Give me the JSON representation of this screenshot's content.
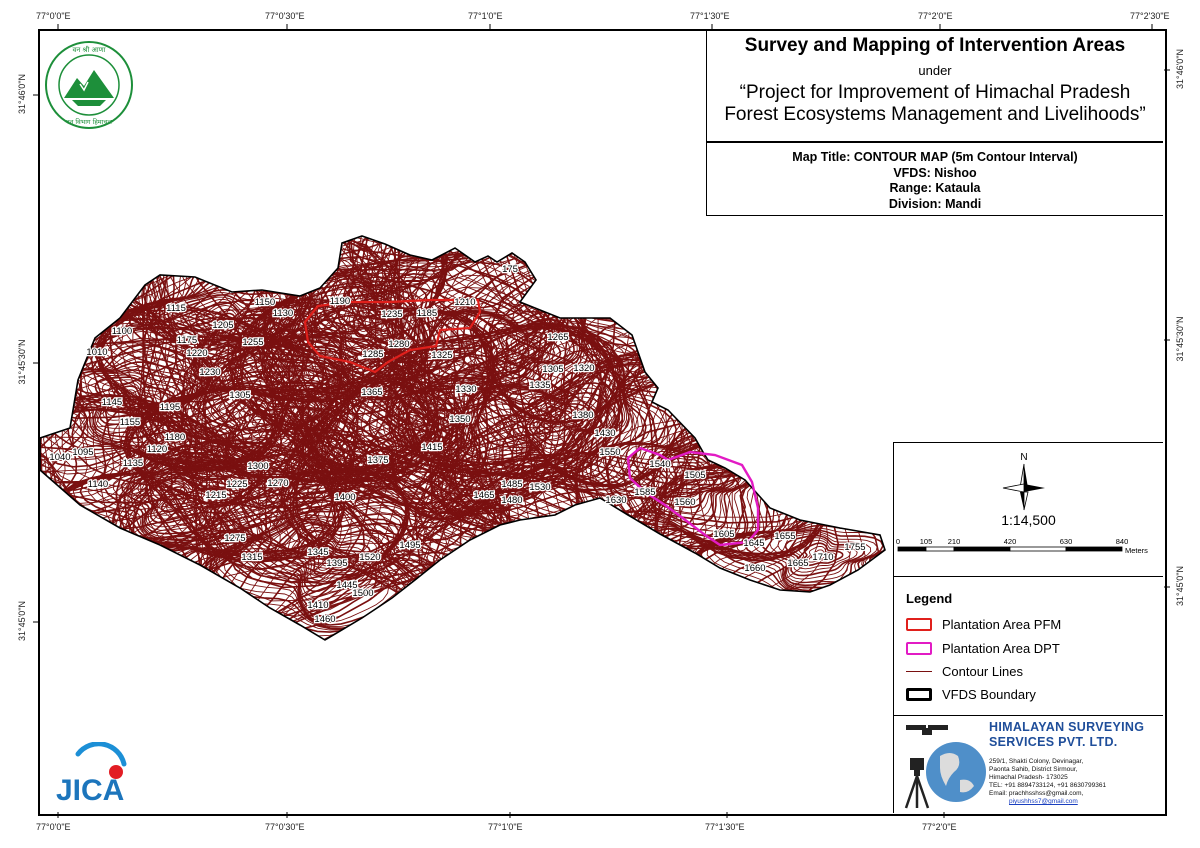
{
  "graticule": {
    "top": [
      "77°0'0\"E",
      "77°0'30\"E",
      "77°1'0\"E",
      "77°1'30\"E",
      "77°2'0\"E",
      "77°2'30\"E"
    ],
    "bottom": [
      "77°0'0\"E",
      "77°0'30\"E",
      "77°1'0\"E",
      "77°1'30\"E",
      "77°2'0\"E"
    ],
    "left": [
      "31°46'0\"N",
      "31°45'30\"N",
      "31°45'0\"N"
    ],
    "right": [
      "31°46'0\"N",
      "31°45'30\"N",
      "31°45'0\"N"
    ]
  },
  "title": {
    "main": "Survey and Mapping of Intervention Areas",
    "under": "under",
    "project_line1": "“Project for Improvement of Himachal Pradesh",
    "project_line2": "Forest Ecosystems Management and Livelihoods”"
  },
  "info": {
    "map_title": "Map Title: CONTOUR MAP (5m Contour Interval)",
    "vfds": "VFDS: Nishoo",
    "range": "Range: Kataula",
    "division": "Division: Mandi"
  },
  "scale": {
    "north": "N",
    "ratio": "1:14,500",
    "ticks": [
      "0",
      "105",
      "210",
      "420",
      "630",
      "840"
    ],
    "unit": "Meters"
  },
  "legend": {
    "title": "Legend",
    "items": [
      {
        "label": "Plantation Area PFM",
        "color": "#e0201c",
        "style": "polygon-outline"
      },
      {
        "label": "Plantation Area DPT",
        "color": "#e21bc4",
        "style": "polygon-outline"
      },
      {
        "label": "Contour Lines",
        "color": "#7a1010",
        "style": "line"
      },
      {
        "label": "VFDS Boundary",
        "color": "#000000",
        "style": "polygon-outline"
      }
    ]
  },
  "company": {
    "name_line1": "HIMALAYAN SURVEYING",
    "name_line2": "SERVICES PVT. LTD.",
    "addr1": "259/1, Shakti Colony, Devinagar,",
    "addr2": "Paonta Sahib, District Sirmour,",
    "addr3": "Himachal Pradesh- 173025",
    "tel": "TEL: +91 8894733124, +91 8630799361",
    "email1": "Email: prachhsshss@gmail.com,",
    "email2": "piyushhss7@gmail.com"
  },
  "logos": {
    "forest_dept": "Himachal Pradesh Forest Department emblem",
    "jica": "JICA"
  },
  "contour_labels": [
    "1190",
    "1210",
    "1185",
    "1235",
    "1150",
    "1130",
    "1115",
    "1100",
    "1010",
    "1175",
    "1205",
    "1220",
    "1255",
    "1280",
    "1285",
    "1325",
    "1265",
    "1305",
    "1320",
    "1330",
    "1230",
    "1305",
    "1365",
    "1335",
    "1380",
    "1350",
    "1430",
    "1415",
    "1550",
    "1195",
    "1180",
    "1145",
    "1155",
    "1120",
    "1040",
    "1095",
    "1135",
    "1140",
    "1215",
    "1225",
    "1300",
    "1270",
    "1375",
    "1400",
    "1465",
    "1480",
    "1485",
    "1530",
    "1630",
    "1585",
    "1540",
    "1560",
    "1505",
    "1275",
    "1315",
    "1345",
    "1395",
    "1445",
    "1520",
    "1495",
    "1500",
    "1410",
    "1460",
    "1605",
    "1645",
    "1655",
    "1665",
    "1660",
    "1710",
    "1755",
    "175"
  ],
  "colors": {
    "contour": "#7a1010",
    "pfm": "#e0201c",
    "dpt": "#e21bc4",
    "boundary": "#000000"
  }
}
